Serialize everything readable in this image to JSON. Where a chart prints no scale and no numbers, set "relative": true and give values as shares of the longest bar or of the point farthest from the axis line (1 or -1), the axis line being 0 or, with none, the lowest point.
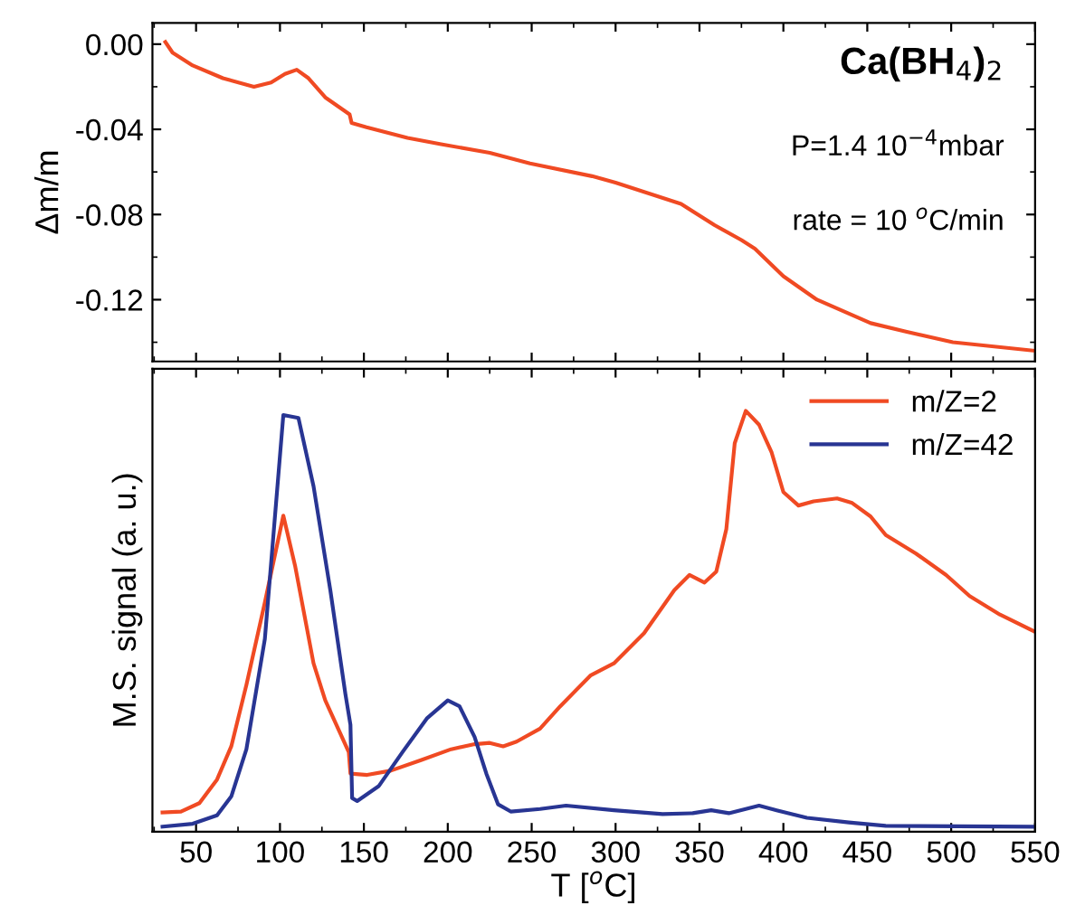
{
  "chart_data": [
    {
      "type": "line",
      "ylabel": "Δm/m",
      "xlim": [
        24,
        550
      ],
      "xticks": [
        50,
        100,
        150,
        200,
        250,
        300,
        350,
        400,
        450,
        500,
        550
      ],
      "ylim": [
        -0.149,
        0.01
      ],
      "yticks": [
        {
          "value": 0,
          "label": "0.00"
        },
        {
          "value": -0.04,
          "label": "-0.04"
        },
        {
          "value": -0.08,
          "label": "-0.08"
        },
        {
          "value": -0.12,
          "label": "-0.12"
        }
      ],
      "tick_labels": "y",
      "annotations": [
        "Ca(BH$_{4}$)$_{2}$",
        "P=1.4 10$^{−4}$mbar",
        "rate = 10 $^{o}$C/min"
      ],
      "series": [
        {
          "color": "#f04a23",
          "x": [
            31.7,
            36,
            48,
            66,
            84.5,
            94.7,
            103,
            110,
            117,
            127,
            141.5,
            142.7,
            151.6,
            176,
            196,
            225,
            249,
            286,
            300,
            339,
            359,
            375,
            383,
            400,
            420,
            452,
            473,
            501,
            550
          ],
          "values": [
            0.001,
            -0.004,
            -0.01,
            -0.016,
            -0.02,
            -0.018,
            -0.014,
            -0.012,
            -0.016,
            -0.025,
            -0.033,
            -0.037,
            -0.039,
            -0.044,
            -0.047,
            -0.051,
            -0.056,
            -0.062,
            -0.065,
            -0.075,
            -0.085,
            -0.092,
            -0.096,
            -0.109,
            -0.12,
            -0.131,
            -0.135,
            -0.14,
            -0.144
          ]
        }
      ]
    },
    {
      "type": "line",
      "xlabel": "T [$^{o}$C]",
      "ylabel": "M.S. signal (a. u.)",
      "relative": true,
      "xlim": [
        24,
        550
      ],
      "xticks": [
        50,
        100,
        150,
        200,
        250,
        300,
        350,
        400,
        450,
        500,
        550
      ],
      "tick_labels": "x",
      "legend": "top right",
      "series": [
        {
          "name": "m/Z=2",
          "color": "#f04a23",
          "x": [
            30,
            41,
            52,
            62.5,
            71,
            80,
            91,
            102,
            109,
            120,
            127,
            136,
            141,
            142,
            152,
            166,
            184,
            202,
            216,
            225,
            233,
            241,
            255,
            267,
            285,
            299,
            317,
            335,
            344,
            353,
            360,
            366,
            371,
            377.6,
            385.5,
            393,
            400,
            409,
            418,
            432,
            441,
            452,
            461,
            479,
            497,
            511,
            529,
            550
          ],
          "values": [
            0.046,
            0.048,
            0.068,
            0.124,
            0.203,
            0.349,
            0.545,
            0.751,
            0.632,
            0.4,
            0.312,
            0.233,
            0.189,
            0.138,
            0.135,
            0.145,
            0.17,
            0.196,
            0.208,
            0.211,
            0.203,
            0.214,
            0.245,
            0.298,
            0.371,
            0.4,
            0.472,
            0.574,
            0.61,
            0.592,
            0.618,
            0.719,
            0.923,
            1.0,
            0.967,
            0.901,
            0.807,
            0.775,
            0.785,
            0.792,
            0.781,
            0.749,
            0.705,
            0.661,
            0.61,
            0.56,
            0.516,
            0.475
          ]
        },
        {
          "name": "m/Z=42",
          "color": "#283593",
          "x": [
            30,
            48,
            62.5,
            71,
            80,
            91,
            102,
            111,
            120,
            130,
            139,
            142,
            143,
            146,
            159,
            173,
            187.5,
            200,
            207,
            216,
            223,
            230,
            237.5,
            255,
            270.5,
            299,
            328,
            346,
            357,
            367.5,
            385.5,
            396,
            414,
            439,
            461,
            550
          ],
          "values": [
            0.012,
            0.019,
            0.039,
            0.084,
            0.196,
            0.458,
            0.99,
            0.983,
            0.821,
            0.574,
            0.327,
            0.254,
            0.08,
            0.073,
            0.109,
            0.189,
            0.269,
            0.312,
            0.298,
            0.225,
            0.138,
            0.065,
            0.048,
            0.054,
            0.062,
            0.051,
            0.042,
            0.044,
            0.051,
            0.044,
            0.062,
            0.051,
            0.033,
            0.022,
            0.014,
            0.012
          ]
        }
      ]
    }
  ]
}
